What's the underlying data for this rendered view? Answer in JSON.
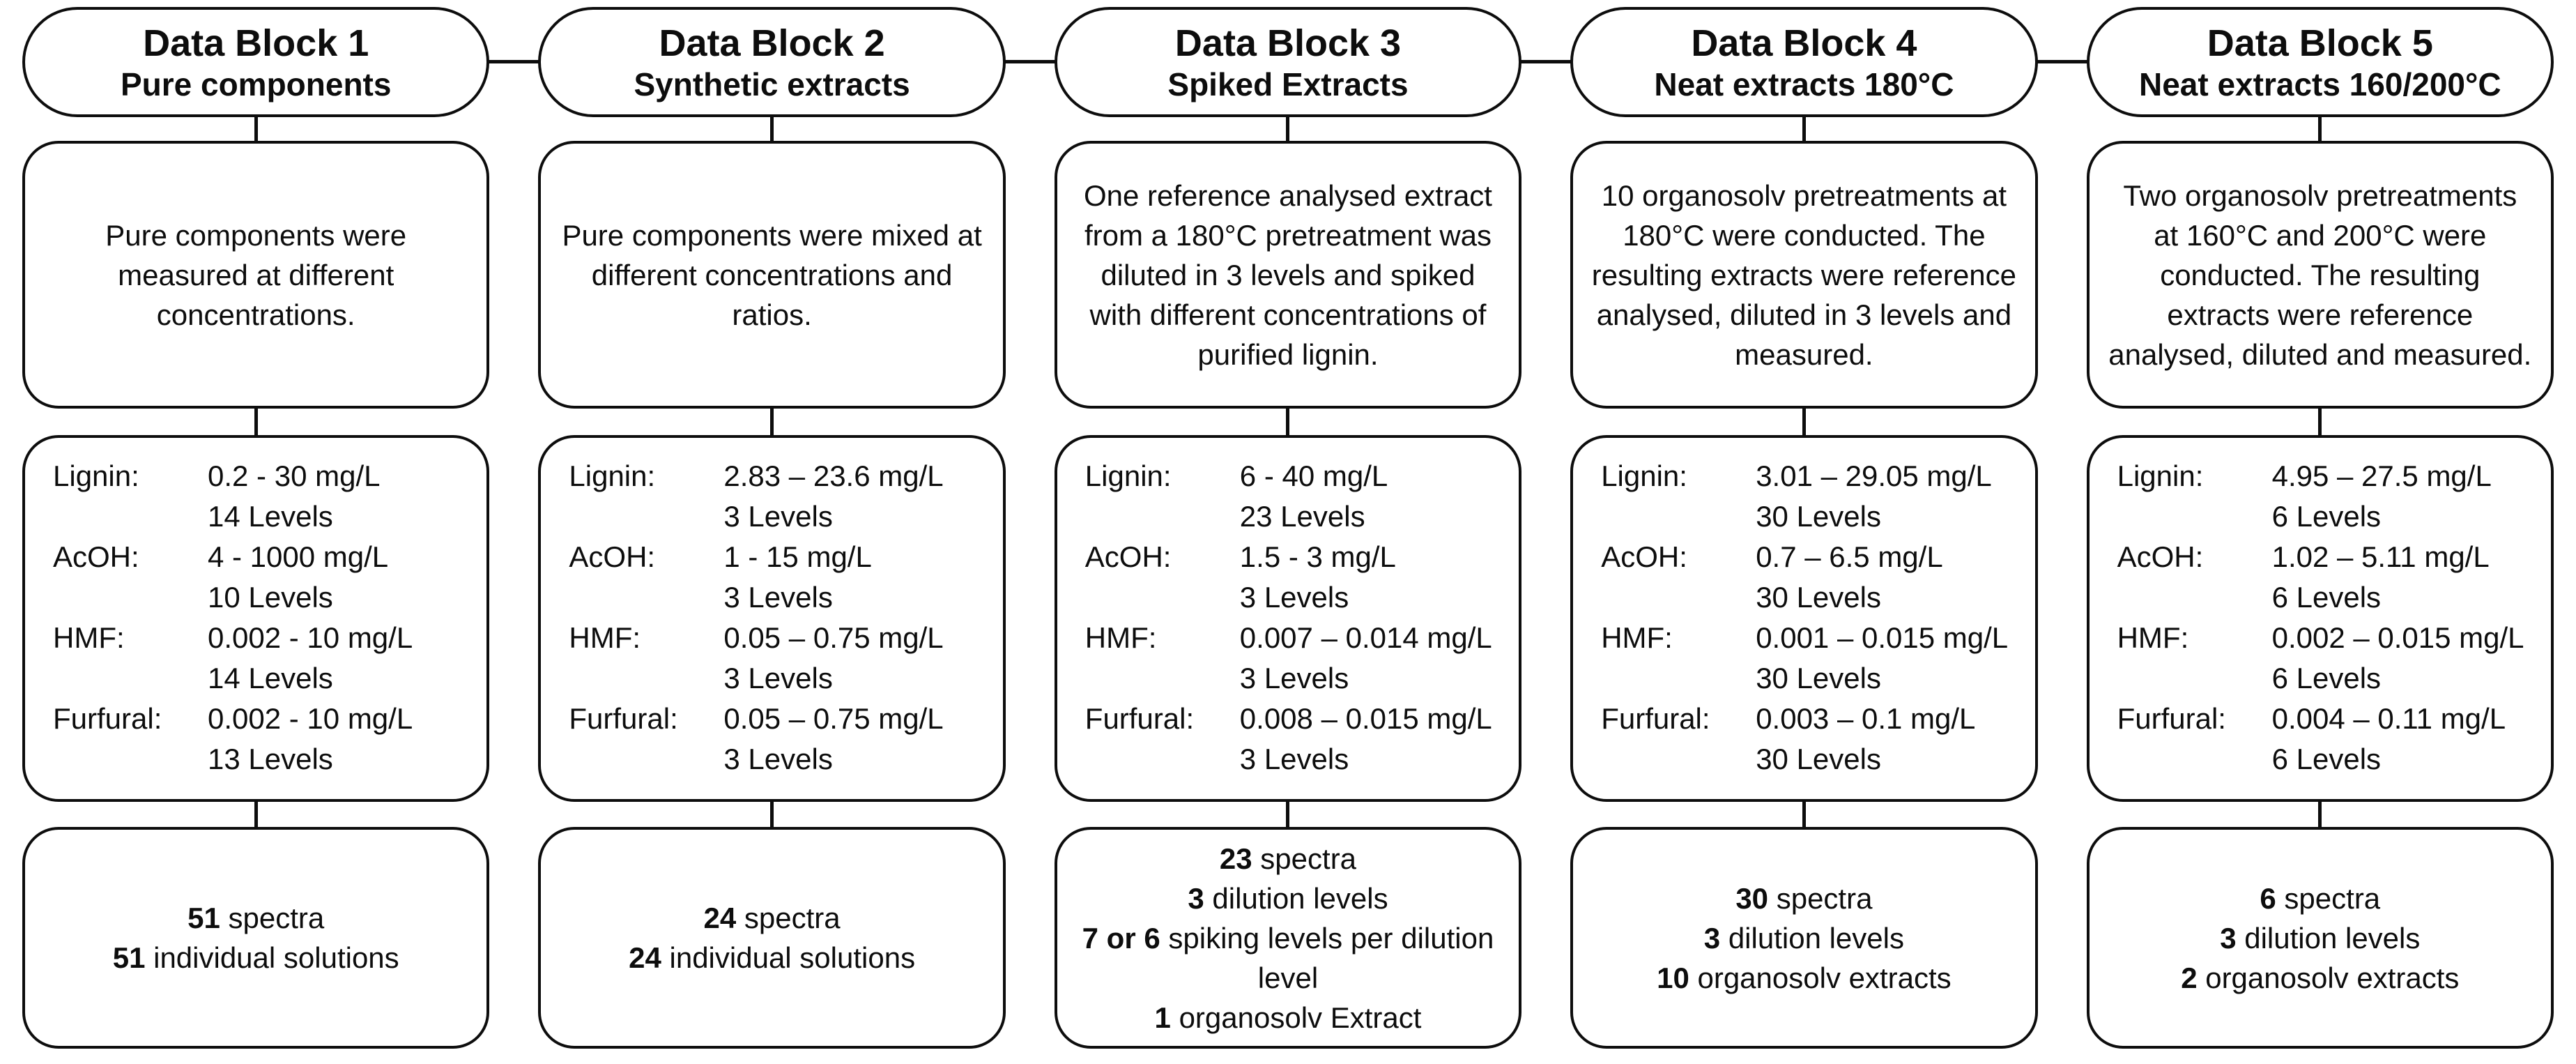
{
  "colors": {
    "line": "#0d0d0d",
    "background": "#ffffff",
    "text": "#0d0d0d"
  },
  "blocks": [
    {
      "title": "Data Block 1",
      "subtitle": "Pure components",
      "description": "Pure components were measured at different concentrations.",
      "components": [
        {
          "label": "Lignin:",
          "range": "0.2 - 30 mg/L",
          "levels": "14 Levels"
        },
        {
          "label": "AcOH:",
          "range": "4 - 1000 mg/L",
          "levels": "10 Levels"
        },
        {
          "label": "HMF:",
          "range": "0.002 - 10 mg/L",
          "levels": "14 Levels"
        },
        {
          "label": "Furfural:",
          "range": "0.002 - 10 mg/L",
          "levels": "13 Levels"
        }
      ],
      "summary": [
        {
          "bold": "51",
          "text": " spectra"
        },
        {
          "bold": "51",
          "text": " individual solutions"
        }
      ]
    },
    {
      "title": "Data Block 2",
      "subtitle": "Synthetic extracts",
      "description": "Pure components were mixed at different concentrations and ratios.",
      "components": [
        {
          "label": "Lignin:",
          "range": "2.83 – 23.6 mg/L",
          "levels": "3 Levels"
        },
        {
          "label": "AcOH:",
          "range": "1 - 15 mg/L",
          "levels": "3 Levels"
        },
        {
          "label": "HMF:",
          "range": "0.05 – 0.75 mg/L",
          "levels": "3 Levels"
        },
        {
          "label": "Furfural:",
          "range": "0.05 – 0.75 mg/L",
          "levels": "3 Levels"
        }
      ],
      "summary": [
        {
          "bold": "24",
          "text": " spectra"
        },
        {
          "bold": "24",
          "text": " individual solutions"
        }
      ]
    },
    {
      "title": "Data Block 3",
      "subtitle": "Spiked Extracts",
      "description": "One reference analysed extract from a 180°C pretreatment was diluted in 3 levels and spiked with different concentrations of purified lignin.",
      "components": [
        {
          "label": "Lignin:",
          "range": "6 - 40 mg/L",
          "levels": "23 Levels"
        },
        {
          "label": "AcOH:",
          "range": "1.5 - 3 mg/L",
          "levels": "3 Levels"
        },
        {
          "label": "HMF:",
          "range": "0.007 – 0.014 mg/L",
          "levels": "3 Levels"
        },
        {
          "label": "Furfural:",
          "range": "0.008 – 0.015 mg/L",
          "levels": "3 Levels"
        }
      ],
      "summary": [
        {
          "bold": "23",
          "text": " spectra"
        },
        {
          "bold": "3",
          "text": " dilution levels"
        },
        {
          "bold": "7 or 6",
          "text": " spiking levels per dilution level"
        },
        {
          "bold": "1",
          "text": " organosolv Extract"
        }
      ]
    },
    {
      "title": "Data Block 4",
      "subtitle": "Neat extracts 180°C",
      "description": "10 organosolv pretreatments at 180°C were conducted. The resulting extracts were reference analysed, diluted in 3 levels and measured.",
      "components": [
        {
          "label": "Lignin:",
          "range": "3.01 – 29.05 mg/L",
          "levels": "30 Levels"
        },
        {
          "label": "AcOH:",
          "range": "0.7 – 6.5 mg/L",
          "levels": "30 Levels"
        },
        {
          "label": "HMF:",
          "range": "0.001 – 0.015 mg/L",
          "levels": "30 Levels"
        },
        {
          "label": "Furfural:",
          "range": "0.003 – 0.1 mg/L",
          "levels": "30 Levels"
        }
      ],
      "summary": [
        {
          "bold": "30",
          "text": " spectra"
        },
        {
          "bold": "3",
          "text": " dilution levels"
        },
        {
          "bold": "10",
          "text": " organosolv extracts"
        }
      ]
    },
    {
      "title": "Data Block 5",
      "subtitle": "Neat extracts 160/200°C",
      "description": "Two organosolv pretreatments at 160°C and 200°C were conducted. The resulting extracts were reference analysed, diluted and measured.",
      "components": [
        {
          "label": "Lignin:",
          "range": "4.95 – 27.5 mg/L",
          "levels": "6 Levels"
        },
        {
          "label": "AcOH:",
          "range": "1.02 – 5.11 mg/L",
          "levels": "6 Levels"
        },
        {
          "label": "HMF:",
          "range": "0.002 – 0.015 mg/L",
          "levels": "6 Levels"
        },
        {
          "label": "Furfural:",
          "range": "0.004 – 0.11 mg/L",
          "levels": "6 Levels"
        }
      ],
      "summary": [
        {
          "bold": "6",
          "text": " spectra"
        },
        {
          "bold": "3",
          "text": " dilution levels"
        },
        {
          "bold": "2",
          "text": " organosolv extracts"
        }
      ]
    }
  ]
}
